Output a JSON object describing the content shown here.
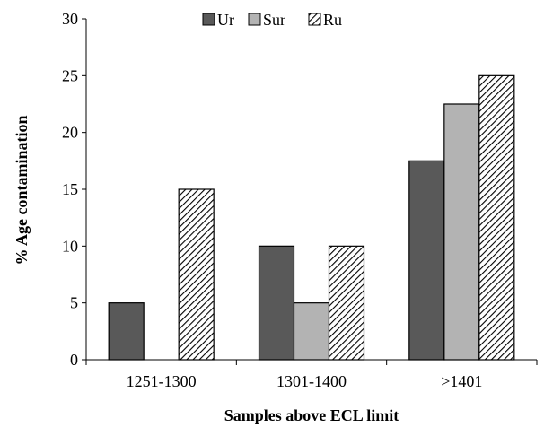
{
  "chart_data": {
    "type": "bar",
    "title": "",
    "xlabel": "Samples above ECL limit",
    "ylabel": "% Age contamination",
    "categories": [
      "1251-1300",
      "1301-1400",
      ">1401"
    ],
    "series": [
      {
        "name": "Ur",
        "values": [
          5,
          10,
          17.5
        ],
        "color": "#595959",
        "pattern": "solid"
      },
      {
        "name": "Sur",
        "values": [
          0,
          5,
          22.5
        ],
        "color": "#b3b3b3",
        "pattern": "solid"
      },
      {
        "name": "Ru",
        "values": [
          15,
          10,
          25
        ],
        "color": "#ffffff",
        "pattern": "diagonal-hatch"
      }
    ],
    "ylim": [
      0,
      30
    ],
    "yticks": [
      0,
      5,
      10,
      15,
      20,
      25,
      30
    ],
    "grid": false,
    "legend_position": "top"
  }
}
